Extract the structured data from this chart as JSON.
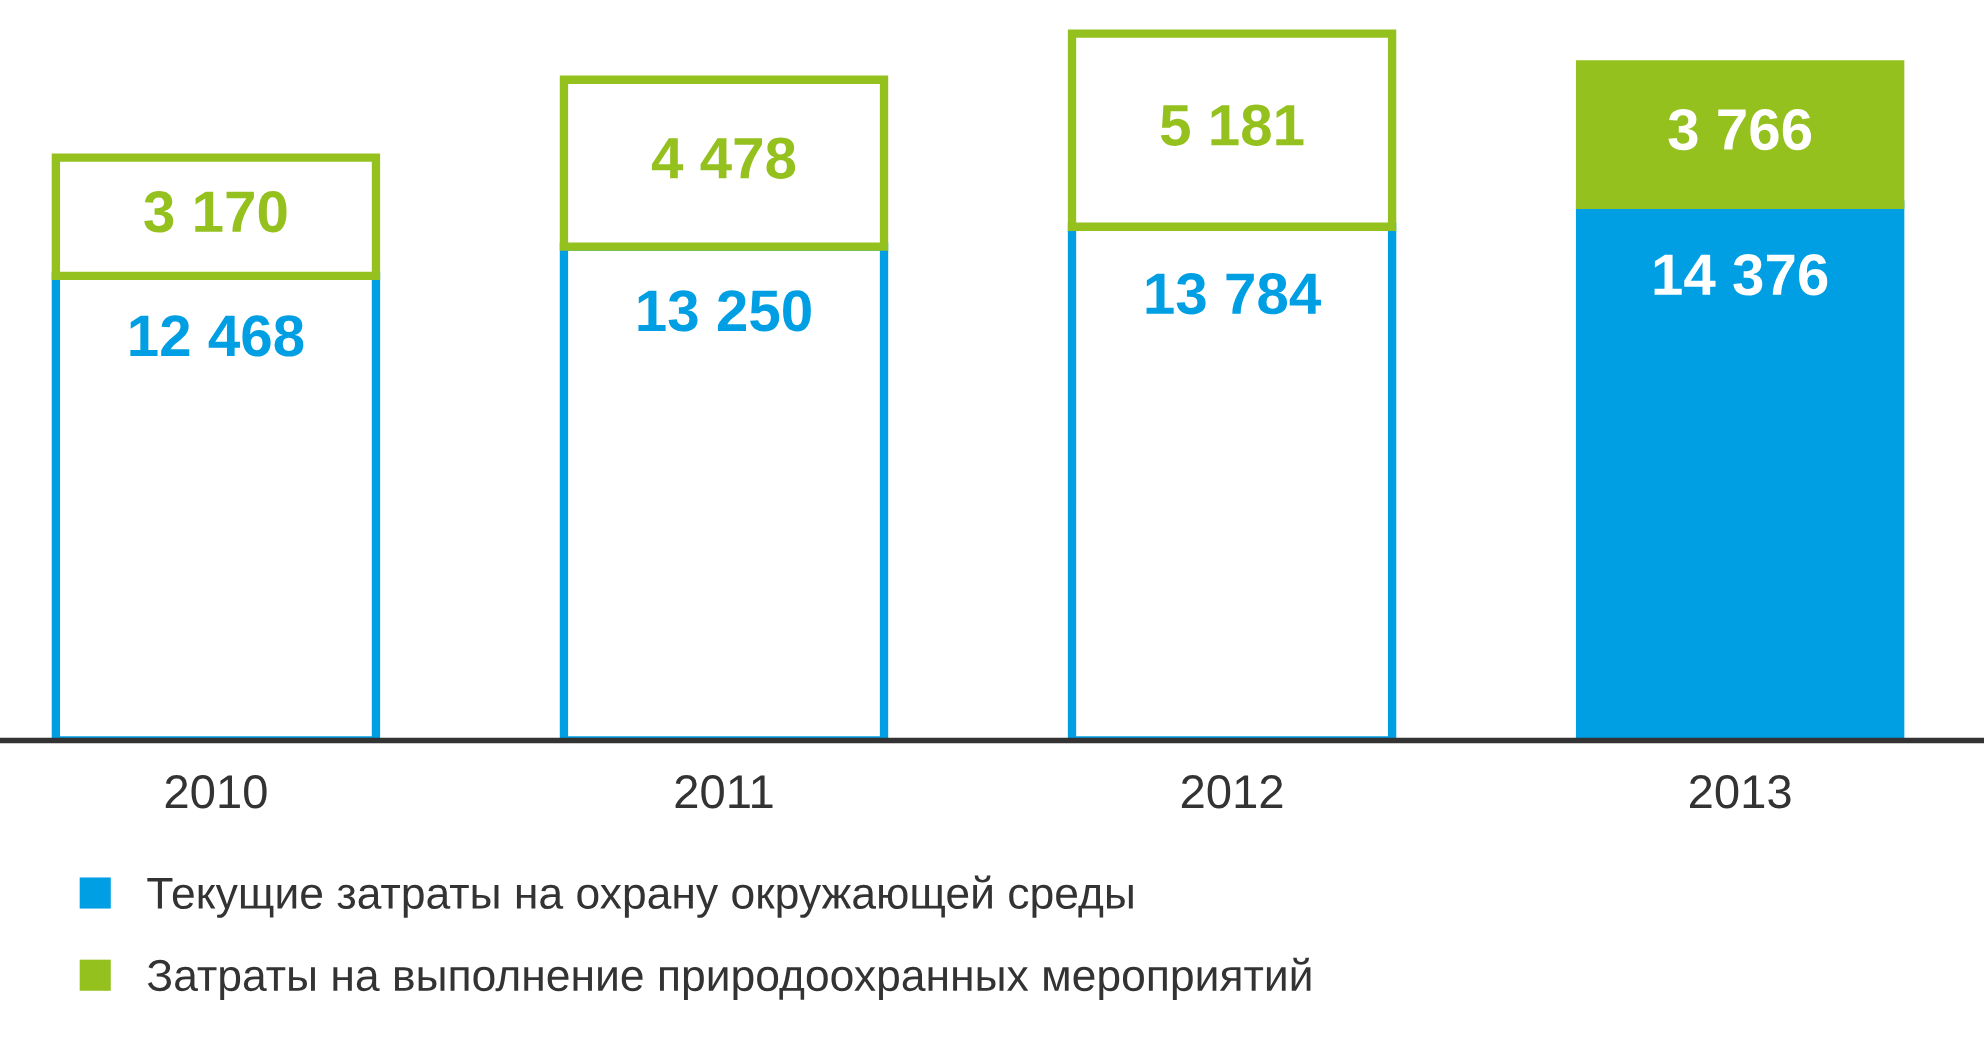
{
  "chart_data": {
    "type": "bar",
    "stacked": true,
    "categories": [
      "2010",
      "2011",
      "2012",
      "2013"
    ],
    "series": [
      {
        "name": "Текущие затраты на охрану окружающей среды",
        "color": "#009fe3",
        "colors": [
          "#ffffff",
          "#ffffff",
          "#ffffff",
          "#009fe3"
        ],
        "values": [
          12468,
          13250,
          13784,
          14376
        ],
        "value_labels": [
          "12 468",
          "13 250",
          "13 784",
          "14 376"
        ]
      },
      {
        "name": "Затраты на выполнение природоохранных мероприятий",
        "color": "#95c11f",
        "colors": [
          "#ffffff",
          "#ffffff",
          "#ffffff",
          "#95c11f"
        ],
        "values": [
          3170,
          4478,
          5181,
          3766
        ],
        "value_labels": [
          "3 170",
          "4 478",
          "5 181",
          "3 766"
        ]
      }
    ],
    "legend": "bottom",
    "grid": false
  }
}
